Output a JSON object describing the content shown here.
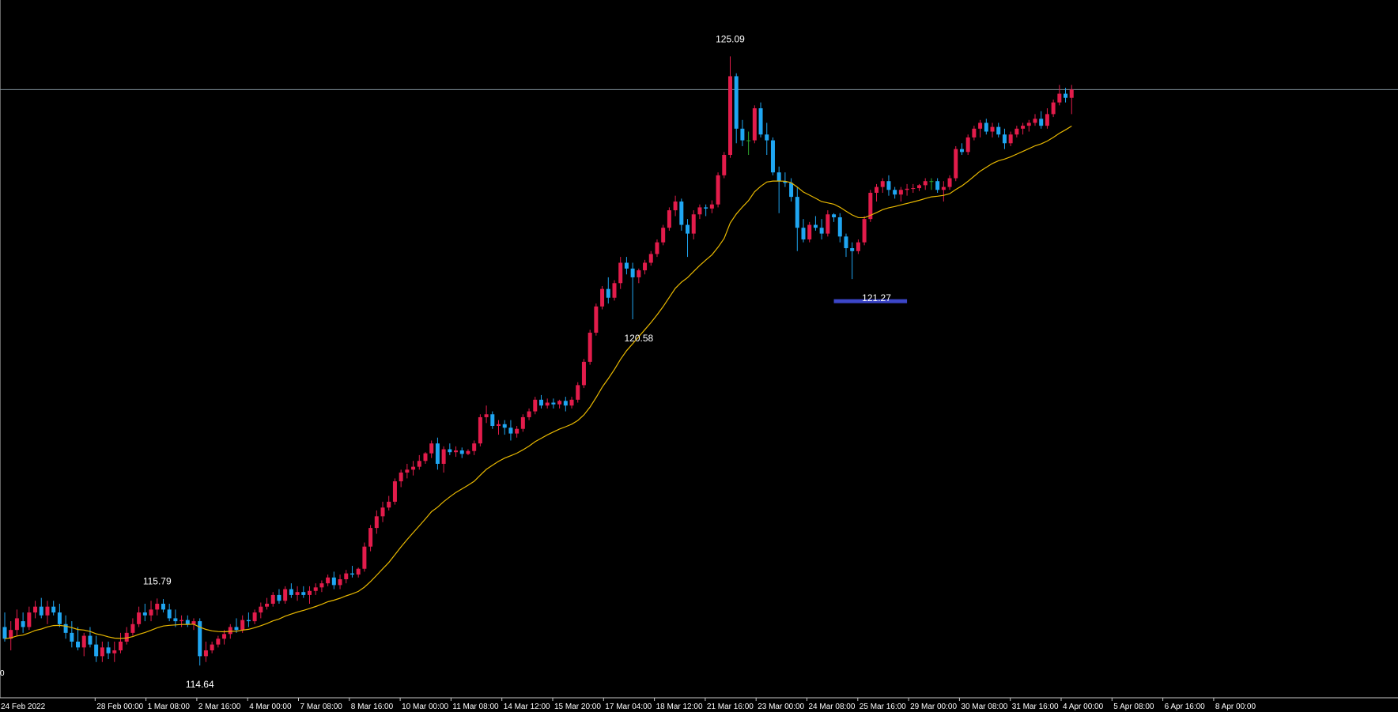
{
  "chart_data": {
    "type": "candlestick",
    "x": [
      "24 Feb 2022",
      "28 Feb 00:00",
      "1 Mar 08:00",
      "2 Mar 16:00",
      "4 Mar 00:00",
      "7 Mar 08:00",
      "8 Mar 16:00",
      "10 Mar 00:00",
      "11 Mar 08:00",
      "14 Mar 12:00",
      "15 Mar 20:00",
      "17 Mar 04:00",
      "18 Mar 12:00",
      "21 Mar 16:00",
      "23 Mar 00:00",
      "24 Mar 08:00",
      "25 Mar 16:00",
      "29 Mar 00:00",
      "30 Mar 08:00",
      "31 Mar 16:00",
      "4 Apr 00:00",
      "5 Apr 08:00",
      "6 Apr 16:00",
      "8 Apr 00:00"
    ],
    "ylim": [
      114.1,
      125.8
    ],
    "grid": false,
    "colors": {
      "background": "#000000",
      "bull_candle": "#E31C4B",
      "bear_candle": "#1FA6F2",
      "doji_candle": "#2EA82E",
      "moving_average": "#E8B800",
      "horizontal_line": "#7F8F99",
      "support_zone": "#3C46C8",
      "axis": "#C8C8C8",
      "text": "#FFFFFF"
    },
    "horizontal_line_level": 124.52,
    "support_zone": {
      "from_index": 136,
      "to_index": 148,
      "level": 121.27
    },
    "annotations": [
      {
        "text": "125.09",
        "index": 119,
        "value": 125.09,
        "position": "above"
      },
      {
        "text": "121.27",
        "index": 143,
        "value": 121.27,
        "position": "below"
      },
      {
        "text": "120.58",
        "index": 104,
        "value": 120.58,
        "position": "below"
      },
      {
        "text": "115.79",
        "index": 25,
        "value": 115.79,
        "position": "above"
      },
      {
        "text": "114.64",
        "index": 32,
        "value": 114.64,
        "position": "below"
      }
    ],
    "axis_edge_label": "0",
    "candles": [
      [
        115.3,
        115.55,
        115.05,
        115.1
      ],
      [
        115.1,
        115.4,
        114.9,
        115.25
      ],
      [
        115.25,
        115.6,
        115.15,
        115.45
      ],
      [
        115.4,
        115.55,
        115.2,
        115.3
      ],
      [
        115.3,
        115.65,
        115.25,
        115.55
      ],
      [
        115.55,
        115.75,
        115.45,
        115.65
      ],
      [
        115.65,
        115.8,
        115.45,
        115.5
      ],
      [
        115.5,
        115.75,
        115.35,
        115.65
      ],
      [
        115.65,
        115.75,
        115.5,
        115.55
      ],
      [
        115.55,
        115.7,
        115.3,
        115.35
      ],
      [
        115.35,
        115.5,
        115.1,
        115.2
      ],
      [
        115.2,
        115.4,
        114.95,
        115.05
      ],
      [
        115.05,
        115.3,
        114.9,
        114.95
      ],
      [
        114.95,
        115.2,
        114.8,
        115.15
      ],
      [
        115.15,
        115.3,
        114.95,
        115.0
      ],
      [
        115.0,
        115.15,
        114.7,
        114.8
      ],
      [
        114.8,
        115.05,
        114.7,
        114.95
      ],
      [
        114.95,
        115.05,
        114.75,
        114.85
      ],
      [
        114.85,
        115.05,
        114.7,
        114.9
      ],
      [
        114.9,
        115.2,
        114.85,
        115.05
      ],
      [
        115.05,
        115.3,
        115.0,
        115.2
      ],
      [
        115.2,
        115.45,
        115.15,
        115.35
      ],
      [
        115.35,
        115.65,
        115.3,
        115.55
      ],
      [
        115.55,
        115.7,
        115.4,
        115.5
      ],
      [
        115.5,
        115.75,
        115.4,
        115.6
      ],
      [
        115.6,
        115.79,
        115.5,
        115.7
      ],
      [
        115.7,
        115.78,
        115.55,
        115.6
      ],
      [
        115.6,
        115.7,
        115.4,
        115.45
      ],
      [
        115.45,
        115.6,
        115.3,
        115.4
      ],
      [
        115.4,
        115.5,
        115.3,
        115.42
      ],
      [
        115.42,
        115.5,
        115.3,
        115.35
      ],
      [
        115.35,
        115.45,
        115.25,
        115.4
      ],
      [
        115.4,
        115.45,
        114.64,
        114.8
      ],
      [
        114.8,
        115.05,
        114.7,
        114.9
      ],
      [
        114.9,
        115.05,
        114.85,
        115.0
      ],
      [
        115.0,
        115.15,
        114.95,
        115.1
      ],
      [
        115.1,
        115.25,
        115.0,
        115.18
      ],
      [
        115.18,
        115.35,
        115.1,
        115.3
      ],
      [
        115.3,
        115.45,
        115.2,
        115.25
      ],
      [
        115.25,
        115.5,
        115.2,
        115.42
      ],
      [
        115.42,
        115.55,
        115.3,
        115.4
      ],
      [
        115.4,
        115.6,
        115.35,
        115.55
      ],
      [
        115.55,
        115.72,
        115.45,
        115.65
      ],
      [
        115.65,
        115.8,
        115.6,
        115.7
      ],
      [
        115.7,
        115.9,
        115.65,
        115.85
      ],
      [
        115.85,
        115.95,
        115.7,
        115.75
      ],
      [
        115.75,
        116.0,
        115.7,
        115.95
      ],
      [
        115.95,
        116.05,
        115.8,
        115.85
      ],
      [
        115.85,
        116.0,
        115.75,
        115.9
      ],
      [
        115.9,
        116.0,
        115.8,
        115.85
      ],
      [
        115.85,
        116.0,
        115.7,
        115.92
      ],
      [
        115.92,
        116.05,
        115.85,
        115.98
      ],
      [
        115.98,
        116.1,
        115.9,
        116.05
      ],
      [
        116.05,
        116.2,
        116.0,
        116.15
      ],
      [
        116.15,
        116.25,
        115.95,
        116.02
      ],
      [
        116.02,
        116.2,
        115.95,
        116.12
      ],
      [
        116.12,
        116.28,
        116.05,
        116.22
      ],
      [
        116.22,
        116.35,
        116.15,
        116.2
      ],
      [
        116.2,
        116.32,
        116.15,
        116.3
      ],
      [
        116.3,
        116.75,
        116.25,
        116.68
      ],
      [
        116.68,
        117.05,
        116.6,
        117.0
      ],
      [
        117.0,
        117.3,
        116.9,
        117.2
      ],
      [
        117.2,
        117.45,
        117.1,
        117.35
      ],
      [
        117.35,
        117.55,
        117.3,
        117.45
      ],
      [
        117.45,
        117.85,
        117.4,
        117.8
      ],
      [
        117.8,
        118.0,
        117.7,
        117.95
      ],
      [
        117.95,
        118.1,
        117.85,
        118.0
      ],
      [
        118.0,
        118.15,
        117.9,
        118.05
      ],
      [
        118.05,
        118.25,
        118.0,
        118.15
      ],
      [
        118.15,
        118.3,
        118.1,
        118.28
      ],
      [
        118.28,
        118.5,
        118.2,
        118.45
      ],
      [
        118.45,
        118.55,
        118.0,
        118.1
      ],
      [
        118.1,
        118.4,
        117.95,
        118.35
      ],
      [
        118.35,
        118.45,
        118.25,
        118.3
      ],
      [
        118.3,
        118.4,
        118.22,
        118.33
      ],
      [
        118.33,
        118.38,
        118.2,
        118.27
      ],
      [
        118.27,
        118.35,
        118.25,
        118.32
      ],
      [
        118.32,
        118.5,
        118.25,
        118.45
      ],
      [
        118.45,
        118.95,
        118.4,
        118.9
      ],
      [
        118.9,
        119.1,
        118.8,
        118.95
      ],
      [
        118.95,
        119.0,
        118.7,
        118.75
      ],
      [
        118.75,
        118.85,
        118.6,
        118.78
      ],
      [
        118.78,
        118.85,
        118.6,
        118.72
      ],
      [
        118.72,
        118.85,
        118.5,
        118.62
      ],
      [
        118.62,
        118.75,
        118.55,
        118.7
      ],
      [
        118.7,
        118.95,
        118.65,
        118.9
      ],
      [
        118.9,
        119.05,
        118.85,
        119.0
      ],
      [
        119.0,
        119.25,
        118.95,
        119.2
      ],
      [
        119.2,
        119.28,
        119.05,
        119.1
      ],
      [
        119.1,
        119.22,
        119.05,
        119.15
      ],
      [
        119.15,
        119.22,
        119.05,
        119.12
      ],
      [
        119.12,
        119.2,
        119.05,
        119.18
      ],
      [
        119.18,
        119.25,
        119.0,
        119.1
      ],
      [
        119.1,
        119.25,
        119.05,
        119.2
      ],
      [
        119.2,
        119.5,
        119.15,
        119.45
      ],
      [
        119.45,
        119.9,
        119.4,
        119.85
      ],
      [
        119.85,
        120.4,
        119.8,
        120.35
      ],
      [
        120.35,
        120.85,
        120.3,
        120.8
      ],
      [
        120.8,
        121.15,
        120.75,
        121.1
      ],
      [
        121.1,
        121.3,
        120.85,
        120.95
      ],
      [
        120.95,
        121.25,
        120.9,
        121.2
      ],
      [
        121.2,
        121.65,
        121.1,
        121.55
      ],
      [
        121.55,
        121.65,
        121.35,
        121.45
      ],
      [
        121.45,
        121.55,
        120.58,
        121.3
      ],
      [
        121.3,
        121.45,
        121.2,
        121.42
      ],
      [
        121.42,
        121.6,
        121.35,
        121.55
      ],
      [
        121.55,
        121.75,
        121.5,
        121.7
      ],
      [
        121.7,
        121.95,
        121.65,
        121.9
      ],
      [
        121.9,
        122.2,
        121.85,
        122.15
      ],
      [
        122.15,
        122.5,
        122.1,
        122.45
      ],
      [
        122.45,
        122.7,
        122.35,
        122.6
      ],
      [
        122.6,
        122.65,
        122.1,
        122.2
      ],
      [
        122.2,
        122.3,
        121.65,
        122.05
      ],
      [
        122.05,
        122.45,
        121.95,
        122.38
      ],
      [
        122.38,
        122.55,
        122.3,
        122.5
      ],
      [
        122.5,
        122.55,
        122.35,
        122.48
      ],
      [
        122.48,
        122.62,
        122.4,
        122.55
      ],
      [
        122.55,
        123.1,
        122.5,
        123.05
      ],
      [
        123.05,
        123.45,
        123.0,
        123.4
      ],
      [
        123.4,
        125.09,
        123.35,
        124.75
      ],
      [
        124.75,
        124.8,
        123.6,
        123.85
      ],
      [
        123.85,
        124.0,
        123.55,
        123.65
      ],
      [
        123.65,
        123.8,
        123.4,
        123.65
      ],
      [
        123.65,
        124.25,
        123.6,
        124.2
      ],
      [
        124.2,
        124.3,
        123.7,
        123.75
      ],
      [
        123.75,
        123.95,
        123.4,
        123.65
      ],
      [
        123.65,
        123.7,
        123.05,
        123.1
      ],
      [
        123.1,
        123.2,
        122.4,
        122.95
      ],
      [
        122.95,
        123.1,
        122.85,
        122.92
      ],
      [
        122.92,
        123.0,
        122.6,
        122.68
      ],
      [
        122.68,
        122.85,
        121.75,
        122.15
      ],
      [
        122.15,
        122.3,
        121.9,
        121.95
      ],
      [
        121.95,
        122.25,
        121.9,
        122.2
      ],
      [
        122.2,
        122.35,
        122.1,
        122.15
      ],
      [
        122.15,
        122.3,
        121.95,
        122.05
      ],
      [
        122.05,
        122.45,
        122.0,
        122.38
      ],
      [
        122.38,
        122.4,
        122.25,
        122.33
      ],
      [
        122.33,
        122.4,
        121.9,
        122.0
      ],
      [
        122.0,
        122.05,
        121.65,
        121.8
      ],
      [
        121.8,
        121.9,
        121.27,
        121.75
      ],
      [
        121.75,
        121.95,
        121.7,
        121.9
      ],
      [
        121.9,
        122.35,
        121.85,
        122.3
      ],
      [
        122.3,
        122.8,
        122.25,
        122.75
      ],
      [
        122.75,
        122.9,
        122.6,
        122.85
      ],
      [
        122.85,
        123.0,
        122.75,
        122.95
      ],
      [
        122.95,
        123.05,
        122.7,
        122.8
      ],
      [
        122.8,
        122.85,
        122.65,
        122.72
      ],
      [
        122.72,
        122.85,
        122.6,
        122.8
      ],
      [
        122.8,
        122.9,
        122.7,
        122.82
      ],
      [
        122.82,
        122.9,
        122.75,
        122.83
      ],
      [
        122.83,
        122.9,
        122.78,
        122.88
      ],
      [
        122.88,
        123.0,
        122.8,
        122.95
      ],
      [
        122.95,
        123.0,
        122.8,
        122.95
      ],
      [
        122.95,
        123.0,
        122.75,
        122.8
      ],
      [
        122.8,
        122.95,
        122.6,
        122.85
      ],
      [
        122.85,
        123.05,
        122.8,
        123.0
      ],
      [
        123.0,
        123.55,
        122.95,
        123.5
      ],
      [
        123.5,
        123.6,
        123.4,
        123.45
      ],
      [
        123.45,
        123.75,
        123.4,
        123.7
      ],
      [
        123.7,
        123.9,
        123.65,
        123.85
      ],
      [
        123.85,
        124.0,
        123.7,
        123.95
      ],
      [
        123.95,
        124.02,
        123.75,
        123.8
      ],
      [
        123.8,
        123.95,
        123.7,
        123.88
      ],
      [
        123.88,
        123.95,
        123.7,
        123.75
      ],
      [
        123.75,
        123.85,
        123.5,
        123.6
      ],
      [
        123.6,
        123.8,
        123.55,
        123.75
      ],
      [
        123.75,
        123.9,
        123.7,
        123.85
      ],
      [
        123.85,
        123.95,
        123.75,
        123.9
      ],
      [
        123.9,
        124.0,
        123.8,
        123.95
      ],
      [
        123.95,
        124.1,
        123.9,
        124.02
      ],
      [
        124.02,
        124.15,
        123.85,
        123.9
      ],
      [
        123.9,
        124.2,
        123.85,
        124.1
      ],
      [
        124.1,
        124.35,
        124.05,
        124.3
      ],
      [
        124.3,
        124.6,
        124.25,
        124.45
      ],
      [
        124.45,
        124.55,
        124.3,
        124.38
      ],
      [
        124.38,
        124.6,
        124.1,
        124.52
      ]
    ]
  }
}
